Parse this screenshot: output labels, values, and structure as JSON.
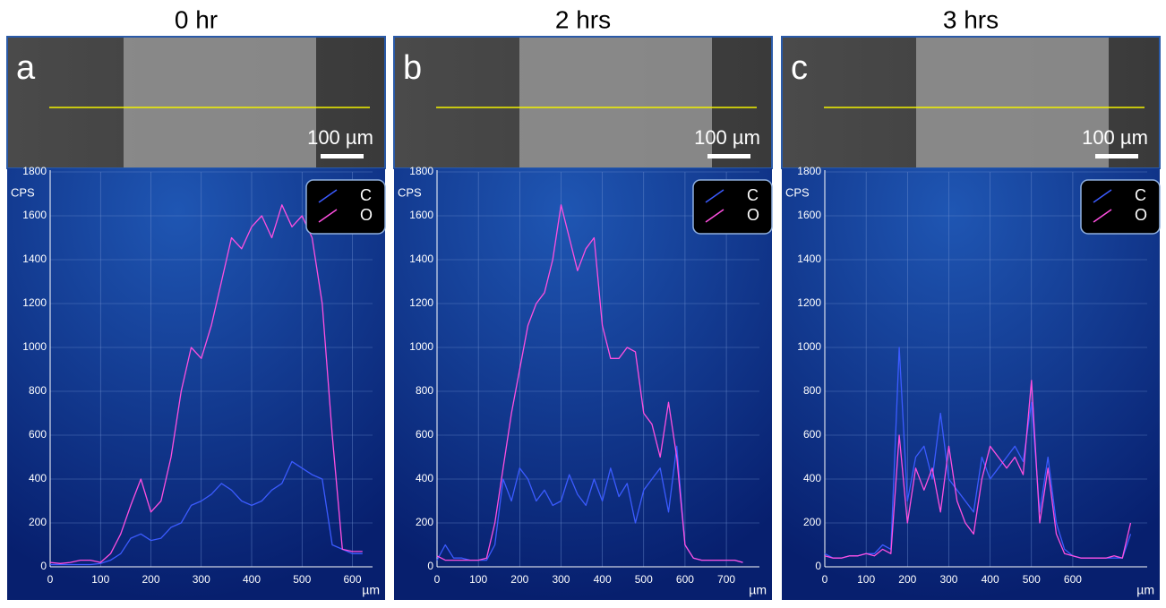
{
  "chart_data": [
    {
      "type": "line",
      "title": "0 hr",
      "panel_label": "a",
      "scale_bar_label": "100 µm",
      "y_label": "CPS",
      "x_label": "µm",
      "x": [
        0,
        20,
        40,
        60,
        80,
        100,
        120,
        140,
        160,
        180,
        200,
        220,
        240,
        260,
        280,
        300,
        320,
        340,
        360,
        380,
        400,
        420,
        440,
        460,
        480,
        500,
        520,
        540,
        560,
        580,
        600,
        620
      ],
      "series": [
        {
          "name": "C",
          "color": "#3b5bff",
          "values": [
            10,
            10,
            10,
            10,
            10,
            15,
            30,
            60,
            130,
            150,
            120,
            130,
            180,
            200,
            280,
            300,
            330,
            380,
            350,
            300,
            280,
            300,
            350,
            380,
            480,
            450,
            420,
            400,
            100,
            80,
            60,
            60
          ]
        },
        {
          "name": "O",
          "color": "#ff4fe0",
          "values": [
            20,
            15,
            20,
            30,
            30,
            20,
            60,
            150,
            280,
            400,
            250,
            300,
            500,
            800,
            1000,
            950,
            1100,
            1300,
            1500,
            1450,
            1550,
            1600,
            1500,
            1650,
            1550,
            1600,
            1500,
            1200,
            600,
            80,
            70,
            70
          ]
        }
      ],
      "xlim": [
        0,
        640
      ],
      "ylim": [
        0,
        1800
      ],
      "xticks": [
        0,
        100,
        200,
        300,
        400,
        500,
        600
      ],
      "yticks": [
        0,
        200,
        400,
        600,
        800,
        1000,
        1200,
        1400,
        1600,
        1800
      ],
      "grid": true,
      "legend": "upper right"
    },
    {
      "type": "line",
      "title": "2 hrs",
      "panel_label": "b",
      "scale_bar_label": "100 µm",
      "y_label": "CPS",
      "x_label": "µm",
      "x": [
        0,
        20,
        40,
        60,
        80,
        100,
        120,
        140,
        160,
        180,
        200,
        220,
        240,
        260,
        280,
        300,
        320,
        340,
        360,
        380,
        400,
        420,
        440,
        460,
        480,
        500,
        520,
        540,
        560,
        580,
        600,
        620,
        640,
        660,
        680,
        700,
        720,
        740
      ],
      "series": [
        {
          "name": "C",
          "color": "#3b5bff",
          "values": [
            30,
            100,
            40,
            40,
            30,
            30,
            30,
            100,
            400,
            300,
            450,
            400,
            300,
            350,
            280,
            300,
            420,
            330,
            280,
            400,
            300,
            450,
            320,
            380,
            200,
            350,
            400,
            450,
            250,
            550,
            100,
            40,
            30,
            30,
            30,
            30,
            30,
            20
          ]
        },
        {
          "name": "O",
          "color": "#ff4fe0",
          "values": [
            50,
            30,
            30,
            30,
            30,
            30,
            40,
            200,
            450,
            700,
            900,
            1100,
            1200,
            1250,
            1400,
            1650,
            1500,
            1350,
            1450,
            1500,
            1100,
            950,
            950,
            1000,
            980,
            700,
            650,
            500,
            750,
            500,
            100,
            40,
            30,
            30,
            30,
            30,
            30,
            20
          ]
        }
      ],
      "xlim": [
        0,
        780
      ],
      "ylim": [
        0,
        1800
      ],
      "xticks": [
        0,
        100,
        200,
        300,
        400,
        500,
        600,
        700
      ],
      "yticks": [
        0,
        200,
        400,
        600,
        800,
        1000,
        1200,
        1400,
        1600,
        1800
      ],
      "grid": true,
      "legend": "upper right"
    },
    {
      "type": "line",
      "title": "3 hrs",
      "panel_label": "c",
      "scale_bar_label": "100 µm",
      "y_label": "CPS",
      "x_label": "µm",
      "x": [
        0,
        20,
        40,
        60,
        80,
        100,
        120,
        140,
        160,
        180,
        200,
        220,
        240,
        260,
        280,
        300,
        320,
        340,
        360,
        380,
        400,
        420,
        440,
        460,
        480,
        500,
        520,
        540,
        560,
        580,
        600,
        620,
        640,
        660,
        680,
        700,
        720,
        740
      ],
      "series": [
        {
          "name": "C",
          "color": "#3b5bff",
          "values": [
            60,
            40,
            40,
            50,
            50,
            60,
            60,
            100,
            80,
            1000,
            300,
            500,
            550,
            400,
            700,
            400,
            350,
            300,
            250,
            500,
            400,
            450,
            500,
            550,
            480,
            750,
            250,
            500,
            200,
            80,
            50,
            40,
            40,
            40,
            40,
            40,
            40,
            150
          ]
        },
        {
          "name": "O",
          "color": "#ff4fe0",
          "values": [
            50,
            40,
            40,
            50,
            50,
            60,
            50,
            80,
            60,
            600,
            200,
            450,
            350,
            450,
            250,
            550,
            300,
            200,
            150,
            400,
            550,
            500,
            450,
            500,
            420,
            850,
            200,
            450,
            150,
            60,
            50,
            40,
            40,
            40,
            40,
            50,
            40,
            200
          ]
        }
      ],
      "xlim": [
        0,
        780
      ],
      "ylim": [
        0,
        1800
      ],
      "xticks": [
        0,
        100,
        200,
        300,
        400,
        500,
        600
      ],
      "yticks": [
        0,
        200,
        400,
        600,
        800,
        1000,
        1200,
        1400,
        1600,
        1800
      ],
      "grid": true,
      "legend": "upper right"
    }
  ]
}
